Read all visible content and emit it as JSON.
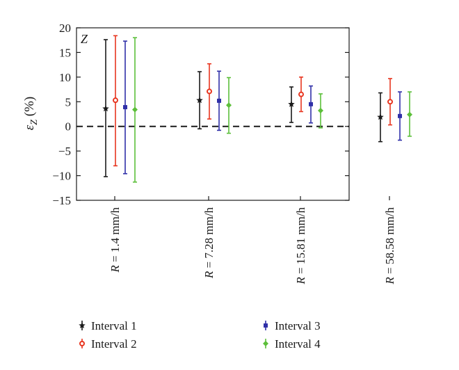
{
  "chart_data": {
    "type": "errorbar",
    "panel_label": "Z",
    "ylabel_symbol": "ε",
    "ylabel_subscript": "Z",
    "ylabel_unit": " (%)",
    "ylim": [
      -15,
      20
    ],
    "yticks": [
      -15,
      -10,
      -5,
      0,
      5,
      10,
      15,
      20
    ],
    "reference_line": 0,
    "categories": [
      {
        "prefix": "R",
        "rest": " = 1.4 mm/h"
      },
      {
        "prefix": "R",
        "rest": " = 7.28 mm/h"
      },
      {
        "prefix": "R",
        "rest": " = 15.81 mm/h"
      },
      {
        "prefix": "R",
        "rest": " = 58.58 mm/h"
      }
    ],
    "series": [
      {
        "name": "Interval 1",
        "color": "#1a1a1a",
        "marker": "star",
        "values": [
          3.6,
          5.3,
          4.5,
          1.9
        ],
        "lower": [
          -10.2,
          -0.5,
          0.8,
          -3.1
        ],
        "upper": [
          17.6,
          11.1,
          8.0,
          6.8
        ]
      },
      {
        "name": "Interval 2",
        "color": "#e8351f",
        "marker": "circle",
        "values": [
          5.3,
          7.1,
          6.5,
          5.0
        ],
        "lower": [
          -8.0,
          1.5,
          3.0,
          0.3
        ],
        "upper": [
          18.4,
          12.7,
          10.0,
          9.7
        ]
      },
      {
        "name": "Interval 3",
        "color": "#2f2fa8",
        "marker": "square",
        "values": [
          3.9,
          5.2,
          4.5,
          2.1
        ],
        "lower": [
          -9.6,
          -0.8,
          0.7,
          -2.8
        ],
        "upper": [
          17.3,
          11.2,
          8.2,
          7.0
        ]
      },
      {
        "name": "Interval 4",
        "color": "#5cbf3a",
        "marker": "diamond",
        "values": [
          3.4,
          4.3,
          3.2,
          2.4
        ],
        "lower": [
          -11.3,
          -1.4,
          -0.3,
          -2.0
        ],
        "upper": [
          18.0,
          9.9,
          6.6,
          7.0
        ]
      }
    ]
  }
}
